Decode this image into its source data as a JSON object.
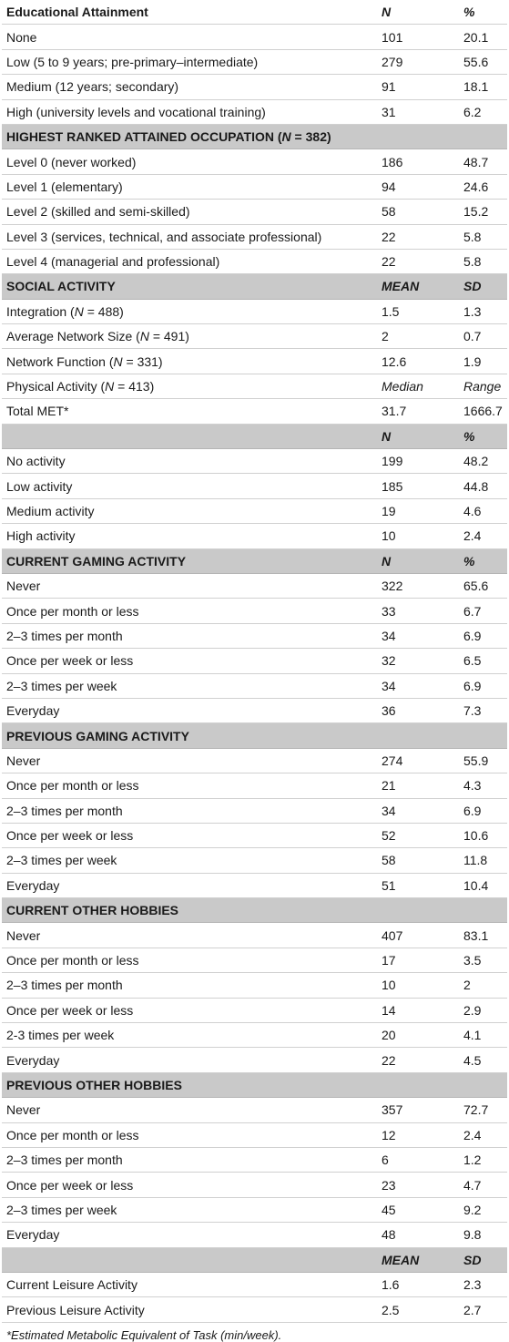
{
  "rows": [
    {
      "type": "header",
      "label": "Educational Attainment",
      "c2": "N",
      "c3": "%"
    },
    {
      "type": "row",
      "label": "None",
      "c2": "101",
      "c3": "20.1"
    },
    {
      "type": "row",
      "label": "Low (5 to 9 years; pre-primary–intermediate)",
      "c2": "279",
      "c3": "55.6"
    },
    {
      "type": "row",
      "label": "Medium (12 years; secondary)",
      "c2": "91",
      "c3": "18.1"
    },
    {
      "type": "row",
      "label": "High (university levels and vocational training)",
      "c2": "31",
      "c3": "6.2"
    },
    {
      "type": "section",
      "label": "HIGHEST RANKED ATTAINED OCCUPATION (",
      "label_n": "N",
      "label_rest": " = 382)",
      "c2": "",
      "c3": ""
    },
    {
      "type": "row",
      "label": "Level 0 (never worked)",
      "c2": "186",
      "c3": "48.7"
    },
    {
      "type": "row",
      "label": "Level 1 (elementary)",
      "c2": "94",
      "c3": "24.6"
    },
    {
      "type": "row",
      "label": "Level 2 (skilled and semi-skilled)",
      "c2": "58",
      "c3": "15.2"
    },
    {
      "type": "row",
      "label": "Level 3 (services, technical, and associate professional)",
      "c2": "22",
      "c3": "5.8"
    },
    {
      "type": "row",
      "label": "Level 4 (managerial and professional)",
      "c2": "22",
      "c3": "5.8"
    },
    {
      "type": "section",
      "label": "SOCIAL ACTIVITY",
      "c2": "MEAN",
      "c3": "SD"
    },
    {
      "type": "row",
      "label": "Integration (",
      "label_n": "N",
      "label_rest": " = 488)",
      "c2": "1.5",
      "c3": "1.3"
    },
    {
      "type": "row",
      "label": "Average Network Size (",
      "label_n": "N",
      "label_rest": " = 491)",
      "c2": "2",
      "c3": "0.7"
    },
    {
      "type": "row",
      "label": "Network Function (",
      "label_n": "N",
      "label_rest": " = 331)",
      "c2": "12.6",
      "c3": "1.9"
    },
    {
      "type": "row",
      "label": "Physical Activity (",
      "label_n": "N",
      "label_rest": " = 413)",
      "c2": "Median",
      "c3": "Range",
      "italic_vals": true
    },
    {
      "type": "row",
      "label": "Total MET*",
      "c2": "31.7",
      "c3": "1666.7"
    },
    {
      "type": "section",
      "label": "",
      "c2": "N",
      "c3": "%"
    },
    {
      "type": "row",
      "label": "No activity",
      "c2": "199",
      "c3": "48.2"
    },
    {
      "type": "row",
      "label": "Low activity",
      "c2": "185",
      "c3": "44.8"
    },
    {
      "type": "row",
      "label": "Medium activity",
      "c2": "19",
      "c3": "4.6"
    },
    {
      "type": "row",
      "label": "High activity",
      "c2": "10",
      "c3": "2.4"
    },
    {
      "type": "section",
      "label": "CURRENT GAMING ACTIVITY",
      "c2": "N",
      "c3": "%"
    },
    {
      "type": "row",
      "label": "Never",
      "c2": "322",
      "c3": "65.6"
    },
    {
      "type": "row",
      "label": "Once per month or less",
      "c2": "33",
      "c3": "6.7"
    },
    {
      "type": "row",
      "label": "2–3 times per month",
      "c2": "34",
      "c3": "6.9"
    },
    {
      "type": "row",
      "label": "Once per week or less",
      "c2": "32",
      "c3": "6.5"
    },
    {
      "type": "row",
      "label": "2–3 times per week",
      "c2": "34",
      "c3": "6.9"
    },
    {
      "type": "row",
      "label": "Everyday",
      "c2": "36",
      "c3": "7.3"
    },
    {
      "type": "section",
      "label": "PREVIOUS GAMING ACTIVITY",
      "c2": "",
      "c3": ""
    },
    {
      "type": "row",
      "label": "Never",
      "c2": "274",
      "c3": "55.9"
    },
    {
      "type": "row",
      "label": "Once per month or less",
      "c2": "21",
      "c3": "4.3"
    },
    {
      "type": "row",
      "label": "2–3 times per month",
      "c2": "34",
      "c3": "6.9"
    },
    {
      "type": "row",
      "label": "Once per week or less",
      "c2": "52",
      "c3": "10.6"
    },
    {
      "type": "row",
      "label": "2–3 times per week",
      "c2": "58",
      "c3": "11.8"
    },
    {
      "type": "row",
      "label": "Everyday",
      "c2": "51",
      "c3": "10.4"
    },
    {
      "type": "section",
      "label": "CURRENT OTHER HOBBIES",
      "c2": "",
      "c3": ""
    },
    {
      "type": "row",
      "label": "Never",
      "c2": "407",
      "c3": "83.1"
    },
    {
      "type": "row",
      "label": "Once per month or less",
      "c2": "17",
      "c3": "3.5"
    },
    {
      "type": "row",
      "label": "2–3 times per month",
      "c2": "10",
      "c3": "2"
    },
    {
      "type": "row",
      "label": "Once per week or less",
      "c2": "14",
      "c3": "2.9"
    },
    {
      "type": "row",
      "label": "2-3 times per week",
      "c2": "20",
      "c3": "4.1"
    },
    {
      "type": "row",
      "label": "Everyday",
      "c2": "22",
      "c3": "4.5"
    },
    {
      "type": "section",
      "label": "PREVIOUS OTHER HOBBIES",
      "c2": "",
      "c3": ""
    },
    {
      "type": "row",
      "label": "Never",
      "c2": "357",
      "c3": "72.7"
    },
    {
      "type": "row",
      "label": "Once per month or less",
      "c2": "12",
      "c3": "2.4"
    },
    {
      "type": "row",
      "label": "2–3 times per month",
      "c2": "6",
      "c3": "1.2"
    },
    {
      "type": "row",
      "label": "Once per week or less",
      "c2": "23",
      "c3": "4.7"
    },
    {
      "type": "row",
      "label": "2–3 times per week",
      "c2": "45",
      "c3": "9.2"
    },
    {
      "type": "row",
      "label": "Everyday",
      "c2": "48",
      "c3": "9.8"
    },
    {
      "type": "section",
      "label": "",
      "c2": "MEAN",
      "c3": "SD"
    },
    {
      "type": "row",
      "label": "Current Leisure Activity",
      "c2": "1.6",
      "c3": "2.3"
    },
    {
      "type": "row",
      "label": "Previous Leisure Activity",
      "c2": "2.5",
      "c3": "2.7"
    }
  ],
  "footnote": "*Estimated Metabolic Equivalent of Task (min/week)."
}
